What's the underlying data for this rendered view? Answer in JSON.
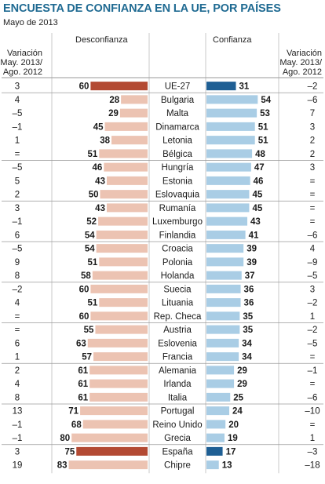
{
  "title": "ENCUESTA DE CONFIANZA EN LA UE, POR PAÍSES",
  "subtitle": "Mayo de 2013",
  "headers": {
    "left_variation": [
      "Variación",
      "May. 2013/",
      "Ago. 2012"
    ],
    "desconfianza": "Desconfianza",
    "confianza": "Confianza",
    "right_variation": [
      "Variación",
      "May. 2013/",
      "Ago. 2012"
    ]
  },
  "colors": {
    "title": "#1f6a92",
    "distrust_bar": "#ecc3b2",
    "distrust_highlight": "#b34a33",
    "trust_bar": "#a9cde5",
    "trust_highlight": "#1f5f94",
    "separator": "#c8c8c8",
    "group_line": "#9a9a9a"
  },
  "chart_data": {
    "type": "bar",
    "title": "ENCUESTA DE CONFIANZA EN LA UE, POR PAÍSES",
    "subtitle": "Mayo de 2013",
    "categories": [
      "UE-27",
      "Bulgaria",
      "Malta",
      "Dinamarca",
      "Letonia",
      "Bélgica",
      "Hungría",
      "Estonia",
      "Eslovaquia",
      "Rumanía",
      "Luxemburgo",
      "Finlandia",
      "Croacia",
      "Polonia",
      "Holanda",
      "Suecia",
      "Lituania",
      "Rep. Checa",
      "Austria",
      "Eslovenia",
      "Francia",
      "Alemania",
      "Irlanda",
      "Italia",
      "Portugal",
      "Reino Unido",
      "Grecia",
      "España",
      "Chipre"
    ],
    "series": [
      {
        "name": "Desconfianza",
        "values": [
          60,
          28,
          29,
          45,
          38,
          51,
          46,
          43,
          50,
          43,
          52,
          54,
          54,
          51,
          58,
          60,
          51,
          60,
          55,
          63,
          57,
          61,
          61,
          61,
          71,
          68,
          80,
          75,
          83
        ]
      },
      {
        "name": "Confianza",
        "values": [
          31,
          54,
          53,
          51,
          51,
          48,
          47,
          46,
          45,
          45,
          43,
          41,
          39,
          39,
          37,
          36,
          36,
          35,
          35,
          34,
          34,
          29,
          29,
          25,
          24,
          20,
          19,
          17,
          13
        ]
      }
    ],
    "variation_desconfianza": [
      "3",
      "4",
      "–5",
      "–1",
      "1",
      "=",
      "–5",
      "5",
      "2",
      "3",
      "–1",
      "6",
      "–5",
      "9",
      "8",
      "–2",
      "4",
      "=",
      "=",
      "6",
      "1",
      "2",
      "4",
      "8",
      "13",
      "–1",
      "–1",
      "3",
      "19"
    ],
    "variation_confianza": [
      "–2",
      "–6",
      "7",
      "3",
      "2",
      "2",
      "3",
      "=",
      "=",
      "=",
      "=",
      "–6",
      "4",
      "–9",
      "–5",
      "3",
      "–2",
      "1",
      "–2",
      "–5",
      "=",
      "–1",
      "=",
      "–6",
      "–10",
      "=",
      "1",
      "–3",
      "–18"
    ],
    "highlighted": [
      "UE-27",
      "España"
    ],
    "group_breaks_after": [
      0,
      5,
      8,
      11,
      14,
      17,
      20,
      23,
      26
    ],
    "xlim": [
      0,
      100
    ],
    "grid": false
  }
}
